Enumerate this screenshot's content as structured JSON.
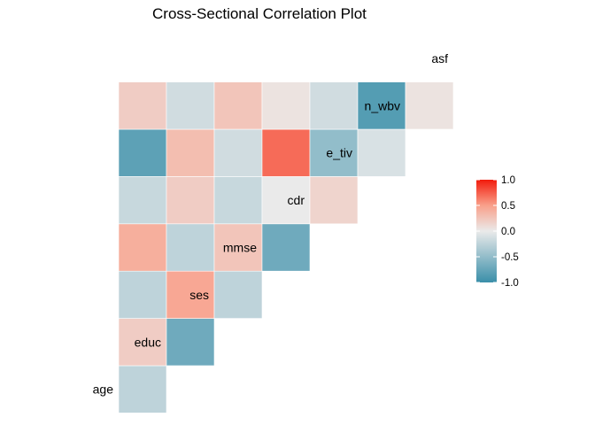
{
  "chart_data": {
    "type": "heatmap",
    "title": "Cross-Sectional Correlation Plot",
    "variables": [
      "age",
      "educ",
      "ses",
      "mmse",
      "cdr",
      "e_tiv",
      "n_wbv",
      "asf"
    ],
    "matrix": [
      [
        -0.25
      ],
      [
        0.2,
        -0.7
      ],
      [
        -0.25,
        0.45,
        -0.25
      ],
      [
        0.4,
        -0.25,
        0.25,
        -0.7
      ],
      [
        -0.2,
        0.2,
        -0.2,
        0.0,
        0.15
      ],
      [
        -0.8,
        0.3,
        -0.15,
        0.7,
        -0.5,
        -0.1
      ],
      [
        0.2,
        -0.15,
        0.25,
        0.05,
        -0.15,
        -0.85,
        0.05
      ]
    ],
    "matrix_note": "Lower-triangle correlations: row i is variable i+1 (educ..asf), column j is variable j (age..).",
    "legend": {
      "ticks": [
        "1.0",
        "0.5",
        "0.0",
        "-0.5",
        "-1.0"
      ],
      "tick_values": [
        1.0,
        0.5,
        0.0,
        -0.5,
        -1.0
      ],
      "range": [
        -1.0,
        1.0
      ],
      "colors": {
        "low": "#3A8FA9",
        "mid": "#EAEAEA",
        "high": "#F21B0C",
        "mid_high": "#F9A08A"
      }
    }
  }
}
